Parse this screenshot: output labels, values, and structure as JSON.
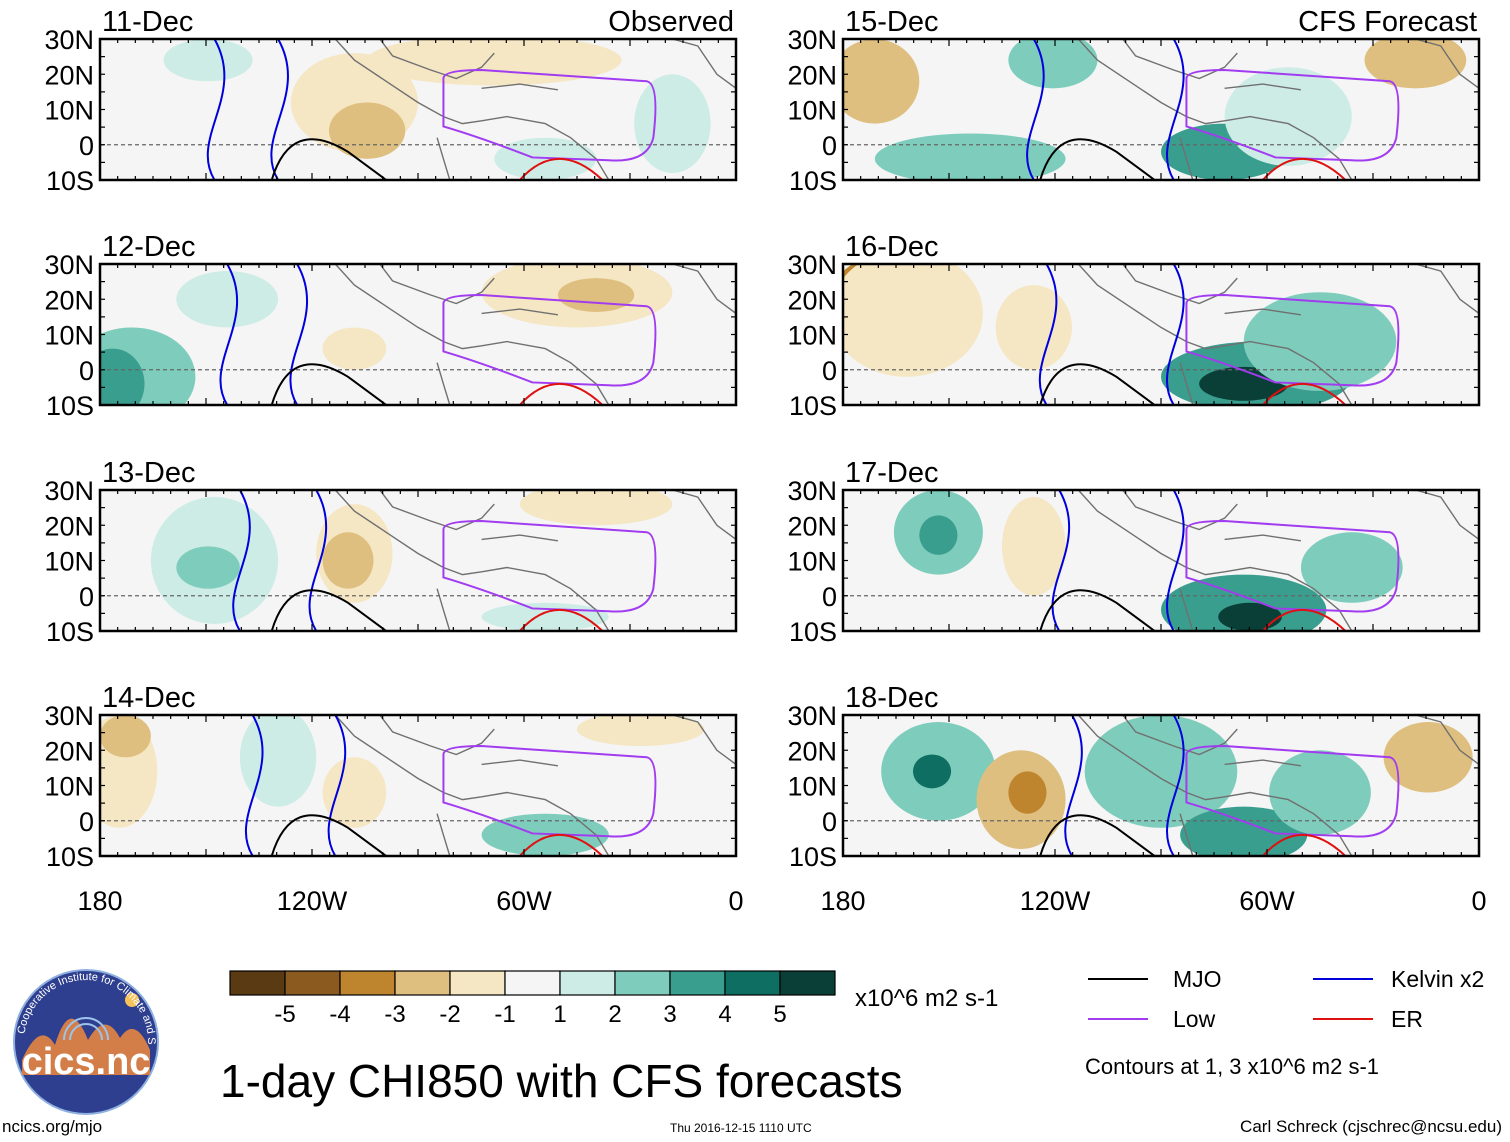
{
  "title": "1-day CHI850 with CFS forecasts",
  "observed_label": "Observed",
  "forecast_label": "CFS Forecast",
  "panels": [
    {
      "date": "11-Dec",
      "kind": "Observed"
    },
    {
      "date": "12-Dec",
      "kind": "Observed"
    },
    {
      "date": "13-Dec",
      "kind": "Observed"
    },
    {
      "date": "14-Dec",
      "kind": "Observed"
    },
    {
      "date": "15-Dec",
      "kind": "CFS Forecast"
    },
    {
      "date": "16-Dec",
      "kind": "CFS Forecast"
    },
    {
      "date": "17-Dec",
      "kind": "CFS Forecast"
    },
    {
      "date": "18-Dec",
      "kind": "CFS Forecast"
    }
  ],
  "lat_ticks": [
    "30N",
    "20N",
    "10N",
    "0",
    "10S"
  ],
  "lon_ticks": [
    "180",
    "120W",
    "60W",
    "0"
  ],
  "colorbar": {
    "colors": [
      "#5a3a12",
      "#8a5a1e",
      "#bf852e",
      "#dfbf7f",
      "#f5e6c4",
      "#f5f5f5",
      "#cdece6",
      "#7ecdbc",
      "#3a9e8f",
      "#0e6e62",
      "#093f37"
    ],
    "labels": [
      "-5",
      "-4",
      "-3",
      "-2",
      "-1",
      "1",
      "2",
      "3",
      "4",
      "5"
    ],
    "units": "x10^6 m2 s-1"
  },
  "legend": [
    {
      "label": "MJO",
      "color": "#000000"
    },
    {
      "label": "Kelvin x2",
      "color": "#0000dd"
    },
    {
      "label": "Low",
      "color": "#a23cf0"
    },
    {
      "label": "ER",
      "color": "#e01010"
    }
  ],
  "contour_note": "Contours at 1, 3 x10^6 m2 s-1",
  "logo": {
    "text": "cics.nc",
    "ring_text": "Cooperative Institute for Climate and Satellites",
    "color": "#2e3f8f"
  },
  "footer": {
    "left": "ncics.org/mjo",
    "center": "Thu 2016-12-15 1110 UTC",
    "right": "Carl Schreck (cjschrec@ncsu.edu)"
  }
}
